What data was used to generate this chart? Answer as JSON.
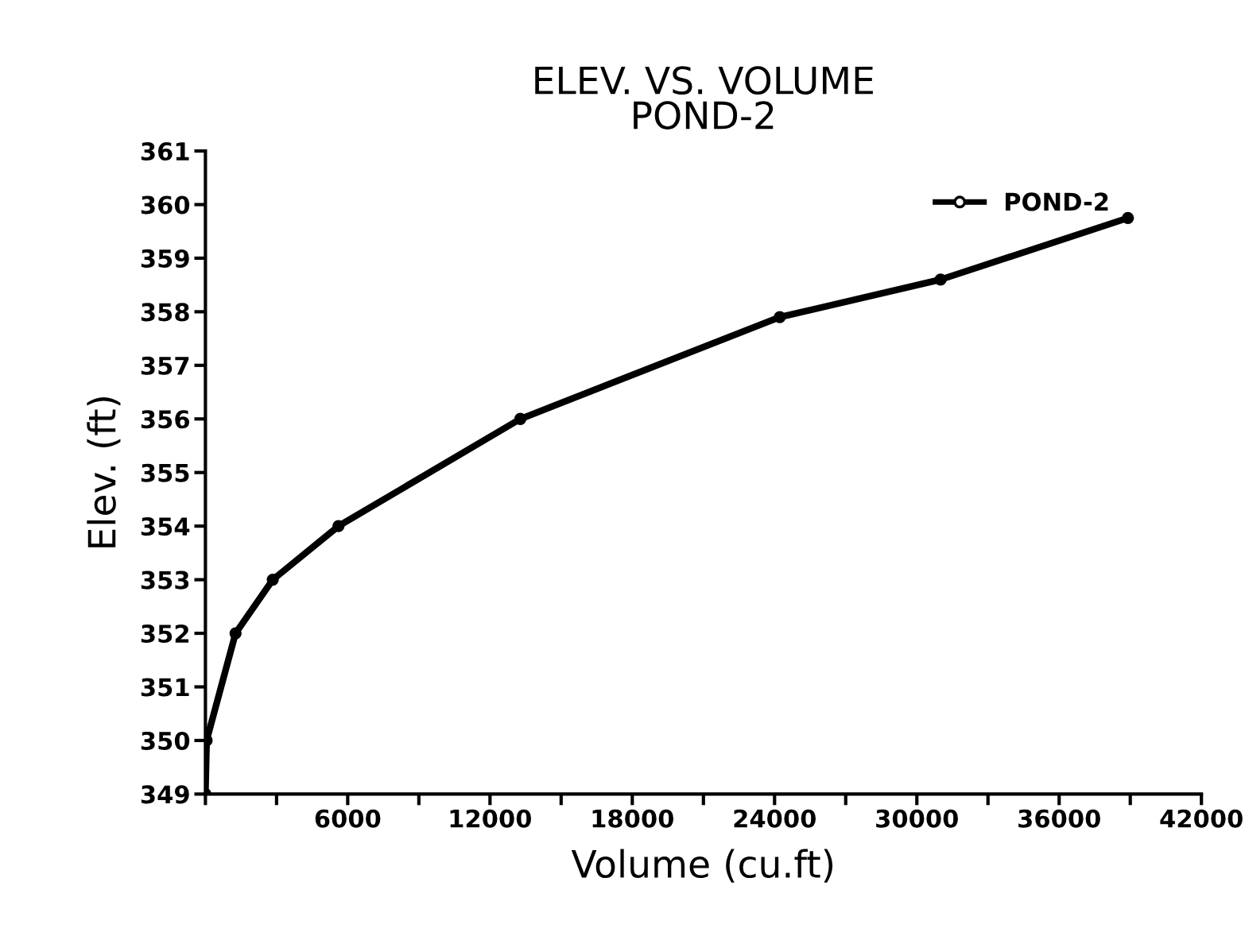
{
  "chart_data": {
    "type": "line",
    "title": "ELEV. VS. VOLUME\nPOND-2",
    "xlabel": "Volume (cu.ft)",
    "ylabel": "Elev. (ft)",
    "x": [
      0,
      50,
      1270,
      2840,
      5610,
      13280,
      24220,
      31000,
      38900
    ],
    "series": [
      {
        "name": "POND-2",
        "color": "#000000",
        "values": [
          349,
          350,
          352,
          353,
          354,
          356,
          357.9,
          358.6,
          359.75
        ]
      }
    ],
    "xlim": [
      0,
      42000
    ],
    "xticks": [
      {
        "value": 0,
        "label": null
      },
      {
        "value": 3000,
        "label": null
      },
      6000,
      {
        "value": 9000,
        "label": null
      },
      12000,
      {
        "value": 15000,
        "label": null
      },
      18000,
      {
        "value": 21000,
        "label": null
      },
      24000,
      {
        "value": 27000,
        "label": null
      },
      30000,
      {
        "value": 33000,
        "label": null
      },
      36000,
      {
        "value": 39000,
        "label": null
      },
      42000
    ],
    "ylim": [
      349,
      361
    ],
    "yticks": [
      349,
      350,
      351,
      352,
      353,
      354,
      355,
      356,
      357,
      358,
      359,
      360,
      361
    ],
    "grid": false,
    "legend": "top right",
    "marker": "circle",
    "line_style": "solid"
  }
}
